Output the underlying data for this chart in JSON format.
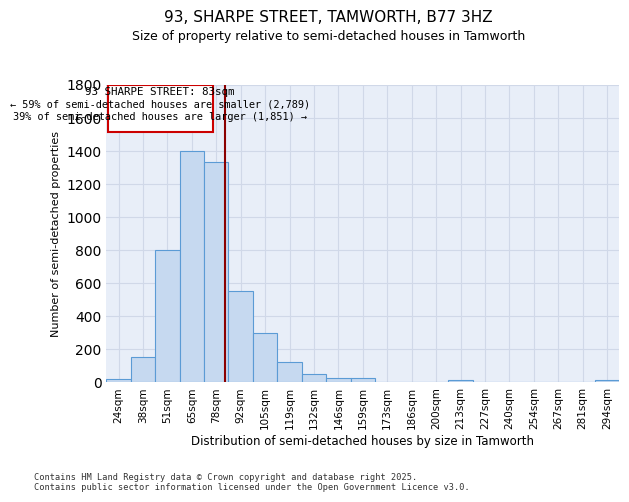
{
  "title_line1": "93, SHARPE STREET, TAMWORTH, B77 3HZ",
  "title_line2": "Size of property relative to semi-detached houses in Tamworth",
  "xlabel": "Distribution of semi-detached houses by size in Tamworth",
  "ylabel": "Number of semi-detached properties",
  "categories": [
    "24sqm",
    "38sqm",
    "51sqm",
    "65sqm",
    "78sqm",
    "92sqm",
    "105sqm",
    "119sqm",
    "132sqm",
    "146sqm",
    "159sqm",
    "173sqm",
    "186sqm",
    "200sqm",
    "213sqm",
    "227sqm",
    "240sqm",
    "254sqm",
    "267sqm",
    "281sqm",
    "294sqm"
  ],
  "values": [
    20,
    150,
    800,
    1400,
    1330,
    550,
    295,
    120,
    50,
    25,
    25,
    0,
    0,
    0,
    10,
    0,
    0,
    0,
    0,
    0,
    10
  ],
  "bar_color": "#c6d9f0",
  "bar_edge_color": "#5b9bd5",
  "marker_label": "93 SHARPE STREET: 83sqm",
  "marker_pct_smaller": "59% of semi-detached houses are smaller (2,789)",
  "marker_pct_larger": "39% of semi-detached houses are larger (1,851)",
  "marker_color": "#8b0000",
  "annotation_box_edge": "#cc0000",
  "ylim": [
    0,
    1800
  ],
  "yticks": [
    0,
    200,
    400,
    600,
    800,
    1000,
    1200,
    1400,
    1600,
    1800
  ],
  "grid_color": "#d0d8e8",
  "background_color": "#e8eef8",
  "footer_line1": "Contains HM Land Registry data © Crown copyright and database right 2025.",
  "footer_line2": "Contains public sector information licensed under the Open Government Licence v3.0."
}
